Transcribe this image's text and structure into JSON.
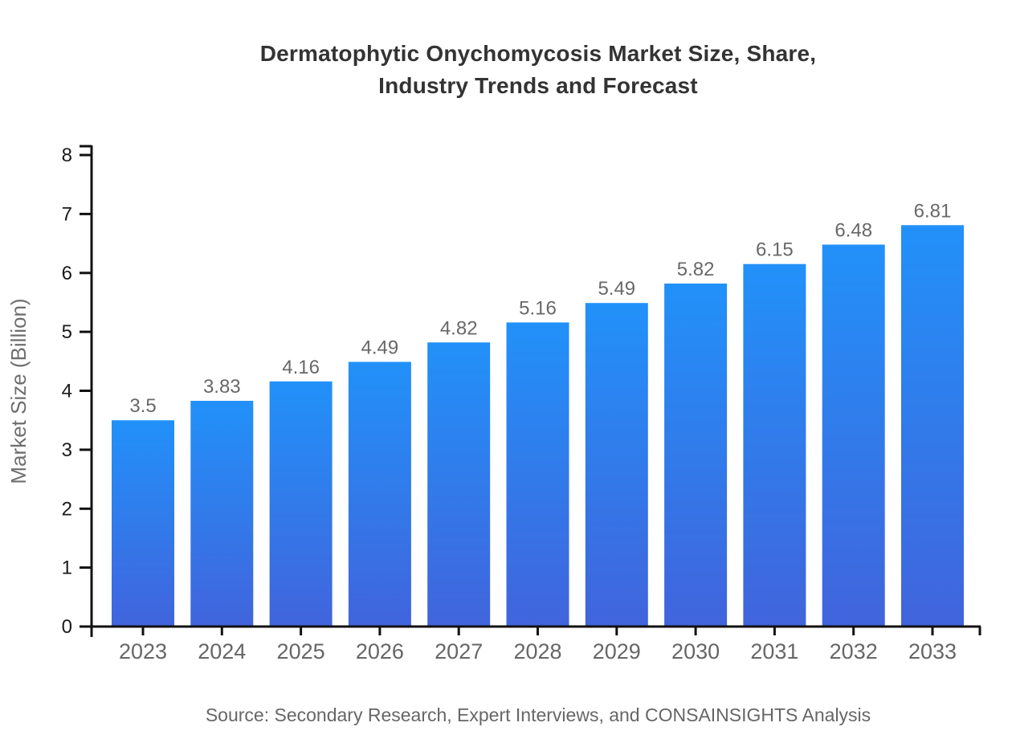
{
  "page": {
    "background": "#ffffff",
    "source_note": "Source: Secondary Research, Expert Interviews, and CONSAINSIGHTS Analysis"
  },
  "chart_data": {
    "type": "bar",
    "title": "Dermatophytic Onychomycosis Market Size, Share, Industry Trends and Forecast",
    "title_lines": [
      "Dermatophytic Onychomycosis Market Size, Share,",
      "Industry Trends and Forecast"
    ],
    "categories": [
      "2023",
      "2024",
      "2025",
      "2026",
      "2027",
      "2028",
      "2029",
      "2030",
      "2031",
      "2032",
      "2033"
    ],
    "values": [
      3.5,
      3.83,
      4.16,
      4.49,
      4.82,
      5.16,
      5.49,
      5.82,
      6.15,
      6.48,
      6.81
    ],
    "xlabel": "",
    "ylabel": "Market Size (Billion)",
    "ylim": [
      0,
      8
    ],
    "y_ticks": [
      0,
      1,
      2,
      3,
      4,
      5,
      6,
      7,
      8
    ],
    "grid": false,
    "legend": false,
    "bar_gradient": {
      "top": "#2291f9",
      "bottom": "#4164dc"
    },
    "colors": {
      "title": "#333333",
      "axis": "#111111",
      "tick_label": "#1a1a1a",
      "category_label": "#666666",
      "value_label": "#686868",
      "axis_title": "#6e6e6e",
      "source": "#666666"
    }
  }
}
